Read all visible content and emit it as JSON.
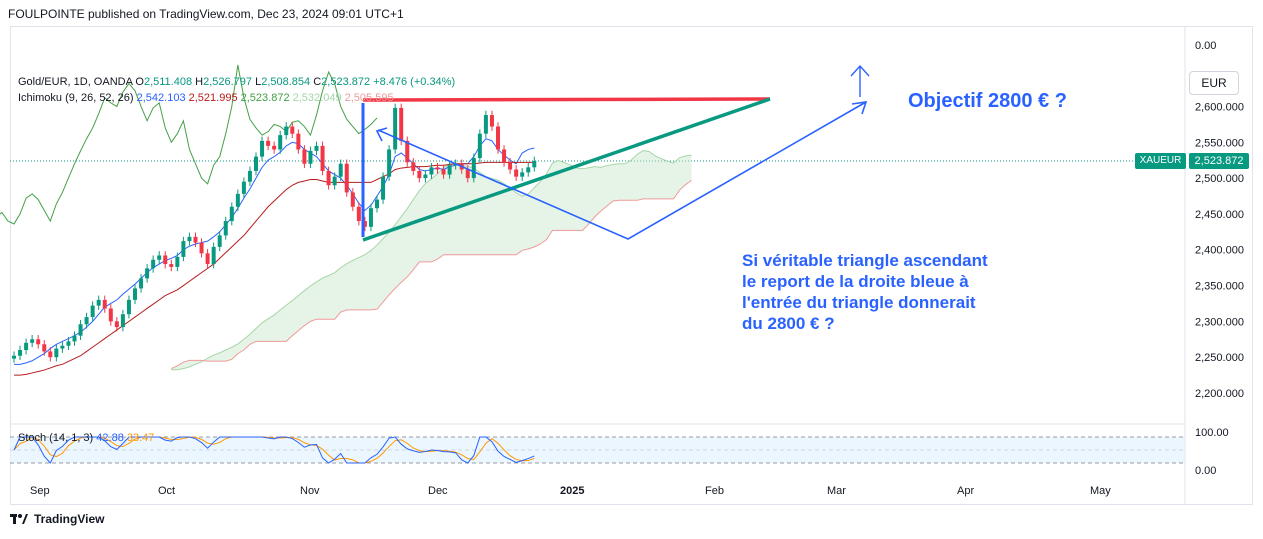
{
  "header": "FOULPOINTE published on TradingView.com, Dec 23, 2024 09:01 UTC+1",
  "legend": {
    "symbol": "Gold/EUR, 1D, OANDA",
    "open_label": "O",
    "open": "2,511.408",
    "high_label": "H",
    "high": "2,526.797",
    "low_label": "L",
    "low": "2,508.854",
    "close_label": "C",
    "close": "2,523.872",
    "change": "+8.476 (+0.34%)",
    "ichimoku_label": "Ichimoku (9, 26, 52, 26)",
    "ichi_tenkan": "2,542.103",
    "ichi_kijun": "2,521.995",
    "ichi_chikou": "2,523.872",
    "ichi_senkou_a": "2,532.049",
    "ichi_senkou_b": "2,505.595",
    "stoch_label": "Stoch (14, 1, 3)",
    "stoch_k": "42.88",
    "stoch_d": "33.47"
  },
  "currency": "EUR",
  "symbol_tag": "XAUEUR",
  "price_tag": "2,523.872",
  "annotations": {
    "objective": "Objectif 2800 € ?",
    "note_lines": [
      "Si véritable triangle ascendant",
      "le report de la droite bleue à",
      "l'entrée du triangle donnerait",
      "du 2800 € ?"
    ]
  },
  "footer": "TradingView",
  "colors": {
    "up": "#089981",
    "down": "#f23645",
    "tenkan": "#2962ff",
    "kijun": "#b71c1c",
    "chikou": "#43a047",
    "cloud": "#c8e6c9",
    "senkou_b": "#ef9a9a",
    "resistance": "#f23645",
    "support": "#089981",
    "annotation": "#2962ff",
    "stoch_k": "#2962ff",
    "stoch_d": "#ff9800"
  },
  "chart_data": [
    {
      "type": "candlestick",
      "symbol": "Gold/EUR",
      "y_ticks": [
        "0.00",
        "2,600.000",
        "2,550.000",
        "2,500.000",
        "2,450.000",
        "2,400.000",
        "2,350.000",
        "2,300.000",
        "2,250.000",
        "2,200.000"
      ],
      "ylim": [
        2180,
        2650
      ],
      "x_ticks": [
        "Sep",
        "Oct",
        "Nov",
        "Dec",
        "2025",
        "Feb",
        "Mar",
        "Apr",
        "May"
      ],
      "last_price": 2523.872,
      "closes": [
        2252,
        2260,
        2270,
        2275,
        2268,
        2258,
        2250,
        2262,
        2266,
        2272,
        2280,
        2296,
        2306,
        2322,
        2330,
        2318,
        2300,
        2292,
        2310,
        2330,
        2346,
        2360,
        2374,
        2386,
        2392,
        2380,
        2376,
        2390,
        2412,
        2418,
        2410,
        2395,
        2380,
        2404,
        2420,
        2440,
        2460,
        2478,
        2495,
        2510,
        2530,
        2552,
        2545,
        2540,
        2560,
        2572,
        2562,
        2540,
        2520,
        2538,
        2545,
        2510,
        2490,
        2502,
        2520,
        2480,
        2460,
        2440,
        2432,
        2458,
        2470,
        2502,
        2540,
        2598,
        2552,
        2522,
        2510,
        2500,
        2505,
        2515,
        2512,
        2505,
        2518,
        2520,
        2512,
        2500,
        2528,
        2562,
        2588,
        2572,
        2540,
        2522,
        2512,
        2502,
        2508,
        2515,
        2524
      ],
      "tenkan": [
        2240,
        2240,
        2242,
        2245,
        2250,
        2255,
        2262,
        2268,
        2272,
        2276,
        2280,
        2285,
        2292,
        2300,
        2310,
        2320,
        2325,
        2330,
        2338,
        2345,
        2352,
        2360,
        2368,
        2375,
        2380,
        2385,
        2388,
        2392,
        2400,
        2405,
        2408,
        2410,
        2412,
        2418,
        2425,
        2435,
        2445,
        2458,
        2472,
        2485,
        2500,
        2515,
        2525,
        2530,
        2536,
        2545,
        2550,
        2548,
        2540,
        2535,
        2530,
        2520,
        2510,
        2505,
        2500,
        2490,
        2478,
        2465,
        2455,
        2462,
        2475,
        2488,
        2505,
        2530,
        2535,
        2528,
        2520,
        2512,
        2510,
        2512,
        2514,
        2512,
        2516,
        2518,
        2520,
        2520,
        2530,
        2545,
        2555,
        2552,
        2540,
        2532,
        2525,
        2520,
        2535,
        2540,
        2542
      ],
      "kijun": [
        2225,
        2225,
        2226,
        2228,
        2230,
        2232,
        2235,
        2238,
        2240,
        2244,
        2248,
        2252,
        2258,
        2264,
        2270,
        2276,
        2282,
        2288,
        2294,
        2300,
        2306,
        2312,
        2318,
        2324,
        2330,
        2336,
        2340,
        2344,
        2350,
        2356,
        2362,
        2368,
        2374,
        2380,
        2388,
        2396,
        2404,
        2412,
        2420,
        2430,
        2440,
        2450,
        2460,
        2468,
        2476,
        2484,
        2490,
        2494,
        2496,
        2498,
        2498,
        2496,
        2494,
        2494,
        2494,
        2494,
        2494,
        2494,
        2494,
        2494,
        2498,
        2502,
        2506,
        2512,
        2514,
        2515,
        2516,
        2516,
        2516,
        2517,
        2518,
        2518,
        2519,
        2520,
        2520,
        2520,
        2520,
        2521,
        2522,
        2522,
        2522,
        2522,
        2522,
        2522,
        2522,
        2522,
        2522
      ],
      "stoch_k_last": 42.88,
      "stoch_d_last": 33.47,
      "stoch_ylim": [
        0,
        100
      ],
      "stoch_ticks": [
        "100.00",
        "0.00"
      ]
    }
  ]
}
